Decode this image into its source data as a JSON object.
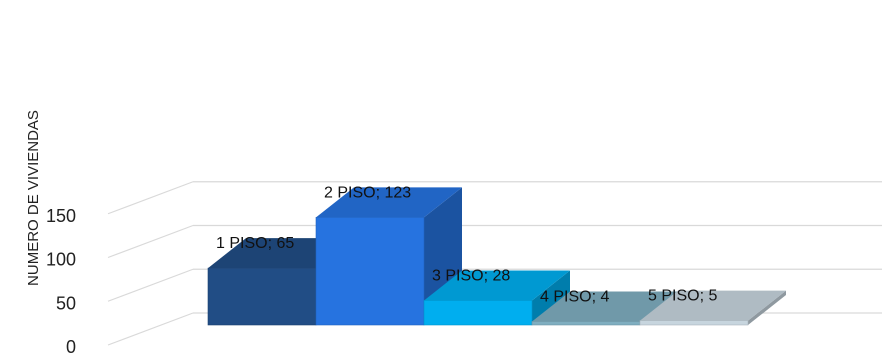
{
  "chart_data": {
    "type": "bar",
    "three_d": true,
    "categories": [
      "1 PISO",
      "2 PISO",
      "3 PISO",
      "4 PISO",
      "5 PISO"
    ],
    "values": [
      65,
      123,
      28,
      4,
      5
    ],
    "data_labels": [
      "1 PISO; 65",
      "2 PISO; 123",
      "3 PISO; 28",
      "4 PISO; 4",
      "5 PISO; 5"
    ],
    "colors": [
      "#214d85",
      "#2673e0",
      "#00aeef",
      "#7faec0",
      "#c7d5de"
    ],
    "title": "",
    "xlabel": "",
    "ylabel": "NUMERO DE VIVIENDAS",
    "yticks": [
      "0",
      "50",
      "100",
      "150"
    ],
    "ylim": [
      0,
      150
    ],
    "grid": true,
    "legend": "none"
  }
}
